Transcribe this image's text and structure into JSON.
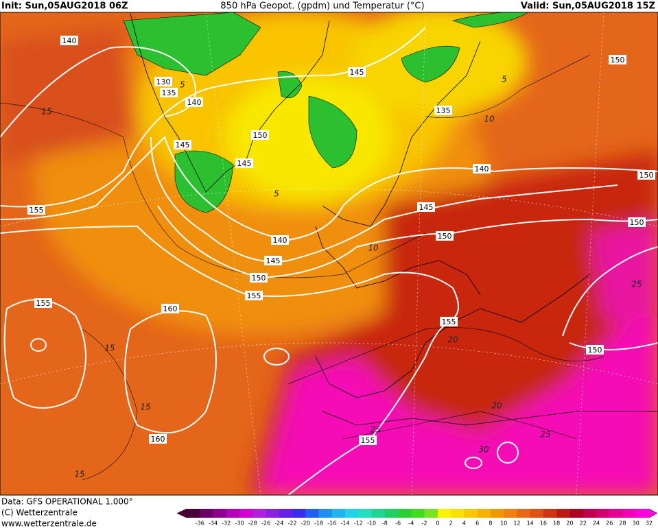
{
  "header": {
    "init": "Init: Sun,05AUG2018 06Z",
    "title": "850 hPa Geopot. (gpdm) und Temperatur (°C)",
    "valid": "Valid: Sun,05AUG2018 15Z"
  },
  "map": {
    "geopotential_labels": [
      140,
      130,
      135,
      140,
      145,
      150,
      135,
      150,
      145,
      145,
      140,
      150,
      155,
      145,
      150,
      150,
      140,
      145,
      150,
      155,
      155,
      160,
      155,
      150,
      160,
      155
    ],
    "temperature_labels": [
      5,
      15,
      10,
      5,
      5,
      10,
      25,
      20,
      15,
      15,
      20,
      25,
      25,
      30,
      15
    ]
  },
  "colorbar": [
    {
      "value": -36,
      "color": "#4a0038"
    },
    {
      "value": -34,
      "color": "#6a0068"
    },
    {
      "value": -32,
      "color": "#8c008c"
    },
    {
      "value": -30,
      "color": "#b400b4"
    },
    {
      "value": -28,
      "color": "#d200d2"
    },
    {
      "value": -26,
      "color": "#b020dc"
    },
    {
      "value": -24,
      "color": "#8a20e0"
    },
    {
      "value": -22,
      "color": "#6420e6"
    },
    {
      "value": -20,
      "color": "#3a2cf0"
    },
    {
      "value": -18,
      "color": "#2060f0"
    },
    {
      "value": -16,
      "color": "#2090f0"
    },
    {
      "value": -14,
      "color": "#20b4f0"
    },
    {
      "value": -12,
      "color": "#20d4e4"
    },
    {
      "value": -10,
      "color": "#20e0c0"
    },
    {
      "value": -8,
      "color": "#20d494"
    },
    {
      "value": -6,
      "color": "#20d064"
    },
    {
      "value": -4,
      "color": "#28d034"
    },
    {
      "value": -2,
      "color": "#40dc20"
    },
    {
      "value": 0,
      "color": "#78e420"
    },
    {
      "value": 2,
      "color": "#f8f400"
    },
    {
      "value": 4,
      "color": "#f8e000"
    },
    {
      "value": 6,
      "color": "#f8c800"
    },
    {
      "value": 8,
      "color": "#f8b000"
    },
    {
      "value": 10,
      "color": "#f09800"
    },
    {
      "value": 12,
      "color": "#f08010"
    },
    {
      "value": 14,
      "color": "#e86814"
    },
    {
      "value": 16,
      "color": "#e05014"
    },
    {
      "value": 18,
      "color": "#d03410"
    },
    {
      "value": 20,
      "color": "#c01a10"
    },
    {
      "value": 22,
      "color": "#ac0420"
    },
    {
      "value": 24,
      "color": "#c0004c"
    },
    {
      "value": 26,
      "color": "#d40070"
    },
    {
      "value": 28,
      "color": "#e40094"
    },
    {
      "value": 30,
      "color": "#f400b4"
    },
    {
      "value": 32,
      "color": "#ff00e0"
    }
  ],
  "footer": {
    "data": "Data: GFS OPERATIONAL 1.000°",
    "copyright": "(C) Wetterzentrale",
    "url": "www.wetterzentrale.de"
  }
}
